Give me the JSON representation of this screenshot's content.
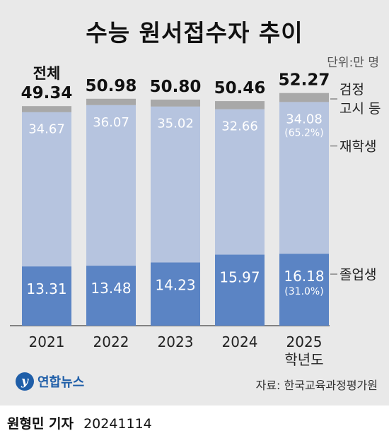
{
  "title": "수능 원서접수자 추이",
  "unit": "단위:만 명",
  "source": "자료: 한국교육과정평가원",
  "logo_text": "연합뉴스",
  "byline": {
    "reporter": "원형민 기자",
    "date": "20241114"
  },
  "colors": {
    "graduates": "#5b84c4",
    "repeaters": "#b6c4df",
    "ged": "#a8a8a8",
    "background": "#e9e9e9"
  },
  "chart_data": {
    "type": "bar",
    "stacked": true,
    "categories": [
      "2021",
      "2022",
      "2023",
      "2024",
      "2025"
    ],
    "category_sublabels": [
      "",
      "",
      "",
      "",
      "학년도"
    ],
    "total_prefix": "전체",
    "totals": [
      49.34,
      50.98,
      50.8,
      50.46,
      52.27
    ],
    "total_labels": [
      "49.34",
      "50.98",
      "50.80",
      "50.46",
      "52.27"
    ],
    "series": [
      {
        "name": "졸업생",
        "values": [
          13.31,
          13.48,
          14.23,
          15.97,
          16.18
        ],
        "labels": [
          "13.31",
          "13.48",
          "14.23",
          "15.97",
          "16.18"
        ],
        "notes": [
          "",
          "",
          "",
          "",
          "(31.0%)"
        ]
      },
      {
        "name": "재학생",
        "values": [
          34.67,
          36.07,
          35.02,
          32.66,
          34.08
        ],
        "labels": [
          "34.67",
          "36.07",
          "35.02",
          "32.66",
          "34.08"
        ],
        "notes": [
          "",
          "",
          "",
          "",
          "(65.2%)"
        ]
      },
      {
        "name": "검정 고시 등",
        "legend_lines": [
          "검정",
          "고시 등"
        ],
        "values": [
          1.36,
          1.43,
          1.55,
          1.83,
          2.01
        ]
      }
    ]
  }
}
